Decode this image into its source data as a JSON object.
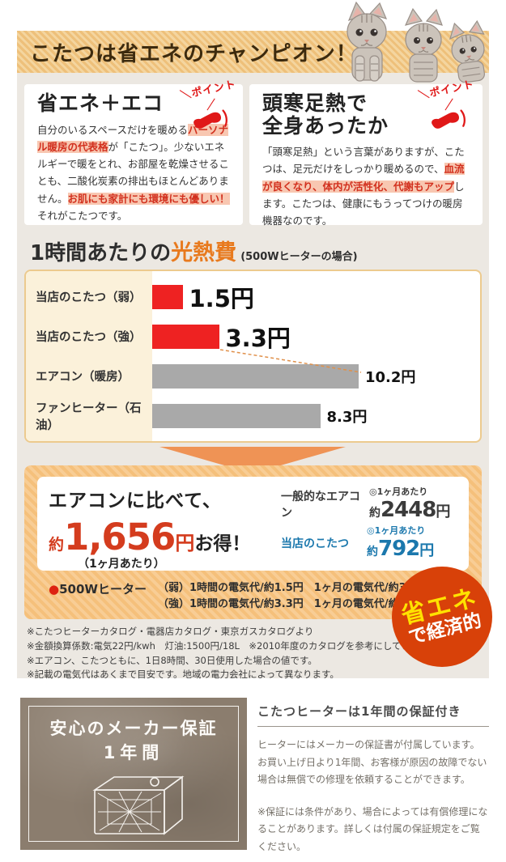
{
  "header": {
    "title": "こたつは省エネのチャンピオン！"
  },
  "points": {
    "stamp_label": "＼ポイント／",
    "left": {
      "title": "省エネ＋エコ",
      "body_seg1": "自分のいるスペースだけを暖める",
      "body_hl1": "パーソナル暖房の代表格",
      "body_seg2": "が「こたつ」。少ないエネルギーで暖をとれ、お部屋を乾燥させることも、二酸化炭素の排出もほとんどありません。",
      "body_hl2": "お肌にも家計にも環境にも優しい！",
      "body_seg3": "それがこたつです。"
    },
    "right": {
      "title_line1": "頭寒足熱で",
      "title_line2": "全身あったか",
      "body_seg1": "「頭寒足熱」という言葉がありますが、こたつは、足元だけをしっかり暖めるので、",
      "body_hl1": "血流が良くなり、体内が活性化、代謝もアップ",
      "body_seg2": "します。こたつは、健康にもうってつけの暖房機器なのです。"
    }
  },
  "chart_data": {
    "type": "bar",
    "orientation": "horizontal",
    "title_black": "1時間あたりの",
    "title_orange": "光熱費",
    "condition": "(500Wヒーターの場合)",
    "categories": [
      "当店のこたつ（弱）",
      "当店のこたつ（強）",
      "エアコン（暖房）",
      "ファンヒーター（石油）"
    ],
    "values": [
      1.5,
      3.3,
      10.2,
      8.3
    ],
    "value_labels": [
      "1.5円",
      "3.3円",
      "10.2円",
      "8.3円"
    ],
    "bar_colors": [
      "#ee2222",
      "#ee2222",
      "#a9a9a9",
      "#a9a9a9"
    ],
    "unit": "円",
    "xlim": [
      0,
      12
    ],
    "legend": "none",
    "grid": "off"
  },
  "savings": {
    "lead": "エアコンに比べて、",
    "approx": "約",
    "amount": "1,656",
    "yen": "円",
    "suffix": "お得！",
    "per_month": "（1ヶ月あたり）",
    "rows": [
      {
        "label": "一般的なエアコン",
        "per": "◎1ヶ月あたり",
        "price_prefix": "約",
        "price_value": "2448",
        "price_unit": "円",
        "color": "#3b3b3b"
      },
      {
        "label": "当店のこたつ",
        "per": "◎1ヶ月あたり",
        "price_prefix": "約",
        "price_value": "792",
        "price_unit": "円",
        "color": "#1b78ad"
      }
    ],
    "heater": {
      "bullet": "●",
      "name": "500Wヒーター",
      "line1": "（弱）1時間の電気代/約1.5円　1ヶ月の電気代/約360円",
      "line2": "（強）1時間の電気代/約3.3円　1ヶ月の電気代/約792円"
    },
    "badge": {
      "line1": "省エネ",
      "line2": "で経済的"
    }
  },
  "footnotes": [
    "※こたつヒーターカタログ・電器店カタログ・東京ガスカタログより",
    "※金額換算係数:電気22円/kwh　灯油:1500円/18L　※2010年度のカタログを参考にしています。",
    "※エアコン、こたつともに、1日8時間、30日使用した場合の値です。",
    "※記載の電気代はあくまで目安です。地域の電力会社によって異なります。"
  ],
  "warranty": {
    "image_title": "安心のメーカー保証",
    "image_subtitle": "1年間",
    "heading": "こたつヒーターは1年間の保証付き",
    "body": "ヒーターにはメーカーの保証書が付属しています。お買い上げ日より1年間、お客様が原因の故障でない場合は無償での修理を依頼することができます。",
    "note": "※保証には条件があり、場合によっては有償修理になることがあります。詳しくは付属の保証規定をご覧ください。"
  },
  "colors": {
    "banner_stripe": "#eec07a",
    "accent_orange": "#e87a1e",
    "highlight_red": "#d2301e",
    "bar_red": "#ee2222",
    "bar_gray": "#a9a9a9",
    "savings_red": "#d43c1e",
    "kotatsu_blue": "#1b78ad",
    "badge_red": "#d84109",
    "warranty_brown": "#8b7d6e"
  }
}
